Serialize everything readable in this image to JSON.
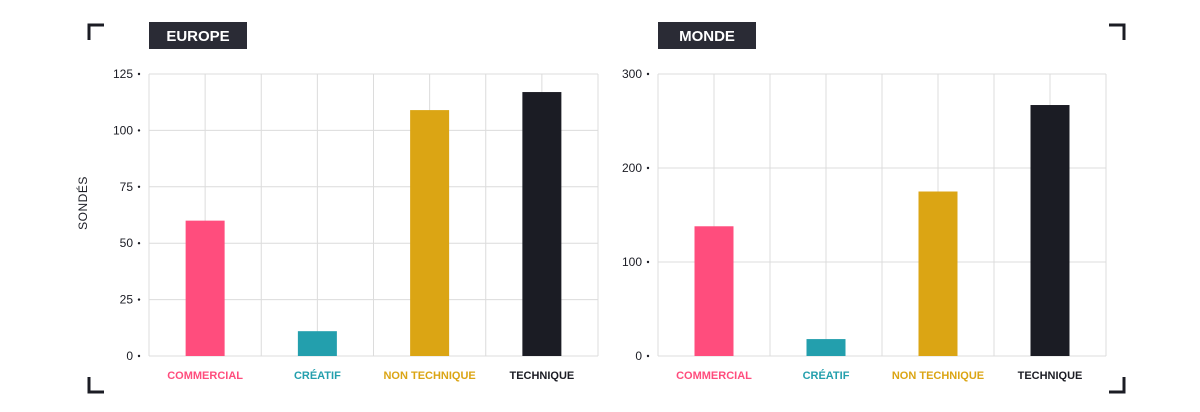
{
  "colors": {
    "commercial": "#ff4d7d",
    "creatif": "#239fad",
    "non_technique": "#dba514",
    "technique": "#1b1c24",
    "title_bg": "#2a2b35",
    "grid": "#dcdcdc"
  },
  "chart_data": [
    {
      "type": "bar",
      "title": "EUROPE",
      "ylabel": "SONDÉS",
      "categories": [
        "COMMERCIAL",
        "CRÉATIF",
        "NON TECHNIQUE",
        "TECHNIQUE"
      ],
      "values": [
        60,
        11,
        109,
        117
      ],
      "ylim": [
        0,
        125
      ],
      "yticks": [
        0,
        25,
        50,
        75,
        100,
        125
      ],
      "grid": true
    },
    {
      "type": "bar",
      "title": "MONDE",
      "ylabel": "",
      "categories": [
        "COMMERCIAL",
        "CRÉATIF",
        "NON TECHNIQUE",
        "TECHNIQUE"
      ],
      "values": [
        138,
        18,
        175,
        267
      ],
      "ylim": [
        0,
        300
      ],
      "yticks": [
        0,
        100,
        200,
        300
      ],
      "grid": true
    }
  ]
}
